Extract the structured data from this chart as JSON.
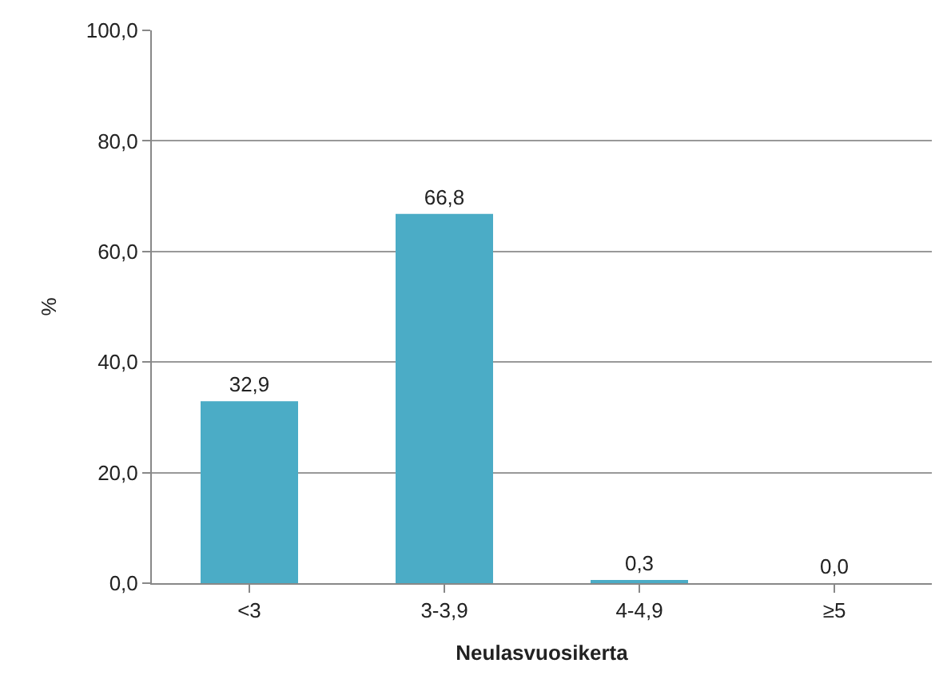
{
  "chart_data": {
    "type": "bar",
    "xlabel": "Neulasvuosikerta",
    "ylabel": "%",
    "categories": [
      "<3",
      "3-3,9",
      "4-4,9",
      "≥5"
    ],
    "values": [
      32.9,
      66.8,
      0.3,
      0.0
    ],
    "value_labels": [
      "32,9",
      "66,8",
      "0,3",
      "0,0"
    ],
    "color": "#4bacc6",
    "ylim": [
      0,
      100
    ],
    "yticks": [
      {
        "value": 0,
        "label": "0,0"
      },
      {
        "value": 20,
        "label": "20,0"
      },
      {
        "value": 40,
        "label": "40,0"
      },
      {
        "value": 60,
        "label": "60,0"
      },
      {
        "value": 80,
        "label": "80,0"
      },
      {
        "value": 100,
        "label": "100,0"
      }
    ],
    "grid": "y",
    "legend": false
  }
}
